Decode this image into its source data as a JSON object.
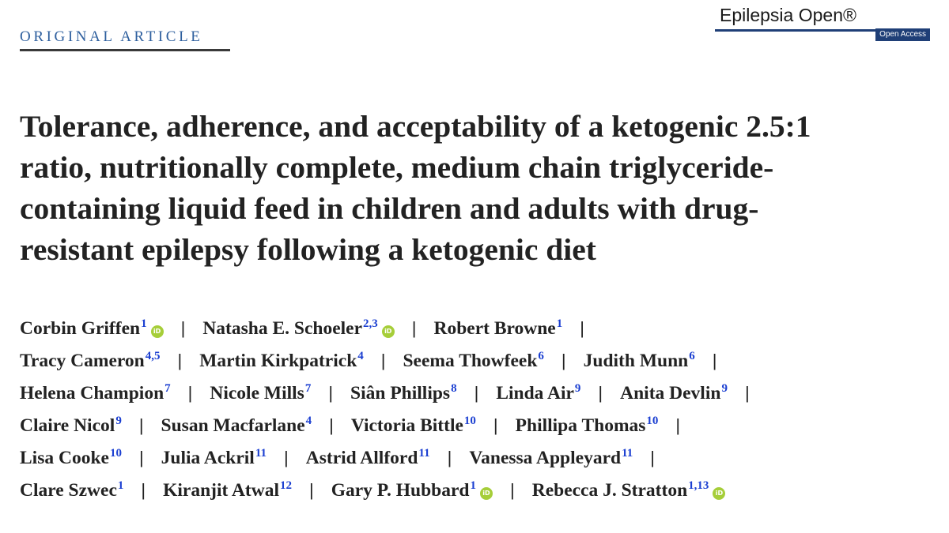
{
  "header": {
    "article_type": "ORIGINAL ARTICLE",
    "journal_name": "Epilepsia Open®",
    "open_access_label": "Open Access"
  },
  "article": {
    "title_lines": [
      "Tolerance, adherence, and acceptability of a ketogenic 2.5:1",
      "ratio, nutritionally complete, medium chain triglyceride-",
      "containing liquid feed in children and adults with drug-",
      "resistant epilepsy following a ketogenic diet"
    ]
  },
  "authors": {
    "rows": [
      [
        {
          "name": "Corbin Griffen",
          "aff": "1",
          "orcid": true
        },
        {
          "name": "Natasha E. Schoeler",
          "aff": "2,3",
          "orcid": true
        },
        {
          "name": "Robert Browne",
          "aff": "1",
          "orcid": false
        }
      ],
      [
        {
          "name": "Tracy Cameron",
          "aff": "4,5",
          "orcid": false
        },
        {
          "name": "Martin Kirkpatrick",
          "aff": "4",
          "orcid": false
        },
        {
          "name": "Seema Thowfeek",
          "aff": "6",
          "orcid": false
        },
        {
          "name": "Judith Munn",
          "aff": "6",
          "orcid": false
        }
      ],
      [
        {
          "name": "Helena Champion",
          "aff": "7",
          "orcid": false
        },
        {
          "name": "Nicole Mills",
          "aff": "7",
          "orcid": false
        },
        {
          "name": "Siân Phillips",
          "aff": "8",
          "orcid": false
        },
        {
          "name": "Linda Air",
          "aff": "9",
          "orcid": false
        },
        {
          "name": "Anita Devlin",
          "aff": "9",
          "orcid": false
        }
      ],
      [
        {
          "name": "Claire Nicol",
          "aff": "9",
          "orcid": false
        },
        {
          "name": "Susan Macfarlane",
          "aff": "4",
          "orcid": false
        },
        {
          "name": "Victoria Bittle",
          "aff": "10",
          "orcid": false
        },
        {
          "name": "Phillipa Thomas",
          "aff": "10",
          "orcid": false
        }
      ],
      [
        {
          "name": "Lisa Cooke",
          "aff": "10",
          "orcid": false
        },
        {
          "name": "Julia Ackril",
          "aff": "11",
          "orcid": false
        },
        {
          "name": "Astrid Allford",
          "aff": "11",
          "orcid": false
        },
        {
          "name": "Vanessa Appleyard",
          "aff": "11",
          "orcid": false
        }
      ],
      [
        {
          "name": "Clare Szwec",
          "aff": "1",
          "orcid": false
        },
        {
          "name": "Kiranjit Atwal",
          "aff": "12",
          "orcid": false
        },
        {
          "name": "Gary P. Hubbard",
          "aff": "1",
          "orcid": true
        },
        {
          "name": "Rebecca J. Stratton",
          "aff": "1,13",
          "orcid": true
        }
      ]
    ],
    "row_trailing_separator": [
      true,
      true,
      true,
      true,
      true,
      false
    ],
    "separator_glyph": "|",
    "orcid_icon_text": "iD"
  }
}
